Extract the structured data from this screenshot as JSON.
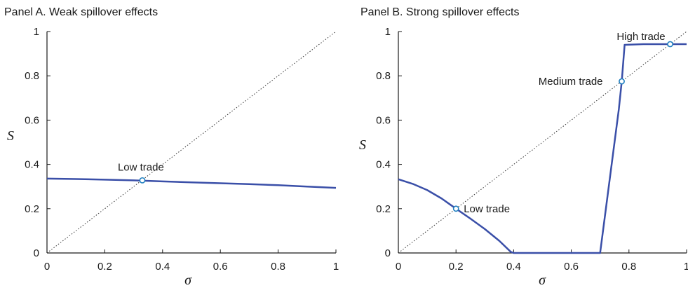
{
  "chart_data": [
    {
      "type": "line",
      "title": "Panel A. Weak spillover effects",
      "xlabel": "σ",
      "ylabel": "S",
      "xlim": [
        0,
        1
      ],
      "ylim": [
        0,
        1
      ],
      "xticks": [
        "0",
        "0.2",
        "0.4",
        "0.6",
        "0.8",
        "1"
      ],
      "yticks": [
        "0",
        "0.2",
        "0.4",
        "0.6",
        "0.8",
        "1"
      ],
      "grid": false,
      "series": [
        {
          "points": [
            [
              0,
              0.336
            ],
            [
              0.1,
              0.334
            ],
            [
              0.2,
              0.331
            ],
            [
              0.3,
              0.328
            ],
            [
              0.4,
              0.323
            ],
            [
              0.5,
              0.319
            ],
            [
              0.6,
              0.315
            ],
            [
              0.7,
              0.311
            ],
            [
              0.8,
              0.306
            ],
            [
              0.9,
              0.3
            ],
            [
              1.0,
              0.294
            ]
          ]
        }
      ],
      "diagonal": [
        [
          0,
          0
        ],
        [
          1,
          1
        ]
      ],
      "annotations": [
        {
          "text": "Low trade",
          "x": 0.33,
          "y": 0.328
        }
      ]
    },
    {
      "type": "line",
      "title": "Panel B. Strong spillover effects",
      "xlabel": "σ",
      "ylabel": "S",
      "xlim": [
        0,
        1
      ],
      "ylim": [
        0,
        1
      ],
      "xticks": [
        "0",
        "0.2",
        "0.4",
        "0.6",
        "0.8",
        "1"
      ],
      "yticks": [
        "0",
        "0.2",
        "0.4",
        "0.6",
        "0.8",
        "1"
      ],
      "grid": false,
      "series": [
        {
          "points": [
            [
              0,
              0.333
            ],
            [
              0.05,
              0.312
            ],
            [
              0.1,
              0.284
            ],
            [
              0.15,
              0.246
            ],
            [
              0.2,
              0.2
            ],
            [
              0.25,
              0.155
            ],
            [
              0.3,
              0.108
            ],
            [
              0.35,
              0.055
            ],
            [
              0.39,
              0.005
            ],
            [
              0.4,
              0.0
            ],
            [
              0.5,
              0.0
            ],
            [
              0.6,
              0.0
            ],
            [
              0.7,
              0.0
            ],
            [
              0.72,
              0.2
            ],
            [
              0.745,
              0.45
            ],
            [
              0.765,
              0.65
            ],
            [
              0.775,
              0.775
            ],
            [
              0.785,
              0.94
            ],
            [
              0.85,
              0.943
            ],
            [
              0.95,
              0.943
            ],
            [
              1.0,
              0.943
            ]
          ]
        }
      ],
      "diagonal": [
        [
          0,
          0
        ],
        [
          1,
          1
        ]
      ],
      "annotations": [
        {
          "text": "Low trade",
          "x": 0.2,
          "y": 0.2
        },
        {
          "text": "Medium trade",
          "x": 0.775,
          "y": 0.775
        },
        {
          "text": "High trade",
          "x": 0.943,
          "y": 0.943
        }
      ]
    }
  ]
}
